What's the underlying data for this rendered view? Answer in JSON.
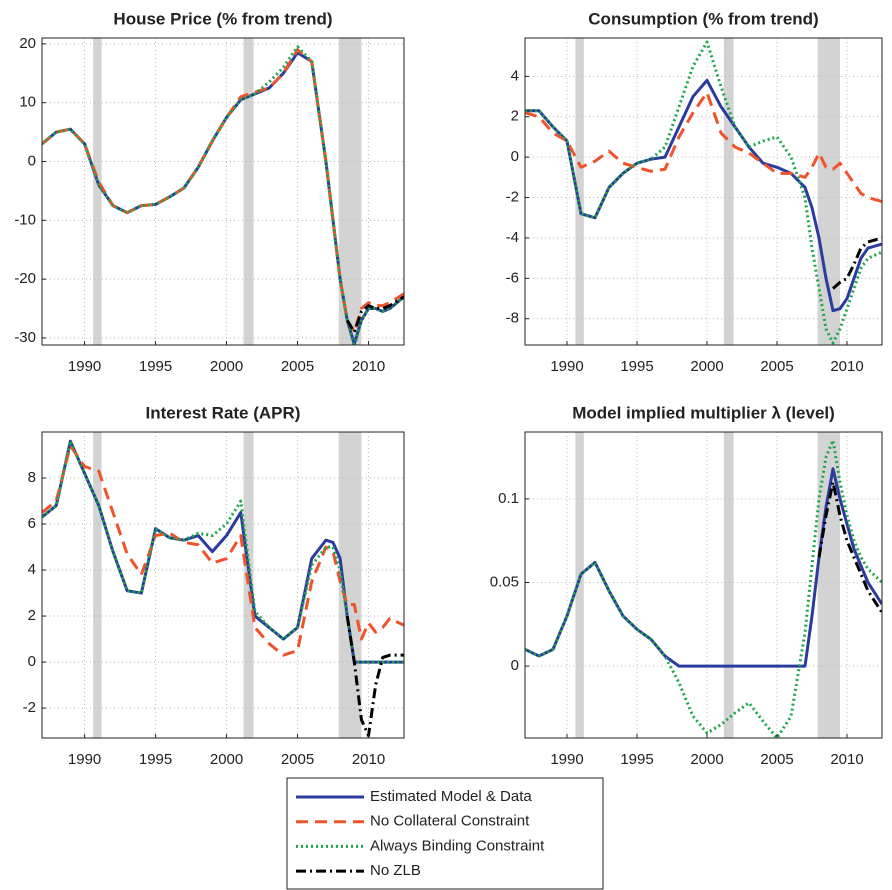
{
  "chart_data": [
    {
      "type": "line",
      "title": "House Price (% from trend)",
      "x": [
        1987,
        1988,
        1989,
        1990,
        1991,
        1992,
        1993,
        1994,
        1995,
        1996,
        1997,
        1998,
        1999,
        2000,
        2001,
        2002,
        2003,
        2004,
        2005,
        2006,
        2007,
        2007.5,
        2008,
        2008.5,
        2009,
        2009.5,
        2010,
        2010.5,
        2011,
        2011.5,
        2012.5
      ],
      "series": [
        {
          "name": "Estimated Model & Data",
          "color": "#2b3a9e",
          "linestyle": "solid",
          "values": [
            3,
            5,
            5.5,
            3,
            -4,
            -7.5,
            -8.7,
            -7.5,
            -7.3,
            -6,
            -4.5,
            -1,
            3.5,
            7.5,
            10.5,
            11.5,
            12.5,
            15,
            18.5,
            17,
            0,
            -10,
            -20,
            -27,
            -31,
            -27,
            -25,
            -25,
            -25.5,
            -25,
            -23
          ]
        },
        {
          "name": "No Collateral Constraint",
          "color": "#f0522a",
          "linestyle": "dashed",
          "values": [
            3,
            5,
            5.5,
            3,
            -3.5,
            -7.5,
            -8.7,
            -7.5,
            -7.3,
            -6,
            -4.5,
            -1,
            3.5,
            7.5,
            11,
            11.8,
            12.5,
            15,
            19,
            17,
            0,
            -10,
            -20,
            -27,
            -29,
            -25,
            -24,
            -24.5,
            -24.5,
            -24,
            -22.5
          ]
        },
        {
          "name": "Always Binding Constraint",
          "color": "#1ca64a",
          "linestyle": "dotted",
          "values": [
            3,
            5,
            5.5,
            3,
            -4,
            -7.5,
            -8.7,
            -7.5,
            -7.3,
            -6,
            -4.5,
            -1,
            3.5,
            7.5,
            10.5,
            11.5,
            13.5,
            16,
            19.5,
            17,
            0,
            -10,
            -20,
            -27,
            -31.5,
            -27,
            -25,
            -25,
            -25.5,
            -25,
            -23
          ]
        },
        {
          "name": "No ZLB",
          "color": "#000000",
          "linestyle": "dashdot",
          "values": [
            null,
            null,
            null,
            null,
            null,
            null,
            null,
            null,
            null,
            null,
            null,
            null,
            null,
            null,
            null,
            null,
            null,
            null,
            null,
            null,
            null,
            null,
            null,
            -27,
            -29,
            -25.5,
            -24.5,
            -25,
            -25,
            -24.5,
            -23
          ]
        }
      ],
      "shaded_x": [
        [
          1990.6,
          1991.2
        ],
        [
          2001.2,
          2001.9
        ],
        [
          2007.9,
          2009.5
        ]
      ],
      "xlim": [
        1987,
        2012.5
      ],
      "xticks": [
        1990,
        1995,
        2000,
        2005,
        2010
      ],
      "ylim": [
        -31.2,
        21
      ],
      "yticks": [
        -30,
        -20,
        -10,
        0,
        10,
        20
      ],
      "grid": true
    },
    {
      "type": "line",
      "title": "Consumption (% from trend)",
      "x": [
        1987,
        1988,
        1989,
        1990,
        1991,
        1992,
        1993,
        1994,
        1995,
        1996,
        1997,
        1998,
        1999,
        2000,
        2001,
        2002,
        2003,
        2004,
        2005,
        2006,
        2007,
        2007.5,
        2008,
        2008.5,
        2009,
        2009.5,
        2010,
        2010.5,
        2011,
        2011.5,
        2012.5
      ],
      "series": [
        {
          "name": "Estimated Model & Data",
          "color": "#2b3a9e",
          "linestyle": "solid",
          "values": [
            2.3,
            2.3,
            1.5,
            0.8,
            -2.8,
            -3,
            -1.5,
            -0.8,
            -0.3,
            -0.1,
            0,
            1.5,
            3,
            3.8,
            2.5,
            1.5,
            0.5,
            -0.3,
            -0.5,
            -0.8,
            -1.5,
            -2.5,
            -4,
            -6,
            -7.6,
            -7.5,
            -7,
            -6,
            -5,
            -4.5,
            -4.3
          ]
        },
        {
          "name": "No Collateral Constraint",
          "color": "#f0522a",
          "linestyle": "dashed",
          "values": [
            2.2,
            2,
            1.2,
            0.8,
            -0.5,
            -0.2,
            0.3,
            -0.3,
            -0.5,
            -0.7,
            -0.6,
            1,
            2.2,
            3.2,
            1.2,
            0.5,
            0.2,
            -0.3,
            -0.8,
            -0.8,
            -1,
            -0.5,
            0.2,
            -0.5,
            -0.6,
            -0.3,
            -0.8,
            -1.3,
            -1.8,
            -2,
            -2.2
          ]
        },
        {
          "name": "Always Binding Constraint",
          "color": "#1ca64a",
          "linestyle": "dotted",
          "values": [
            2.3,
            2.3,
            1.5,
            0.8,
            -2.8,
            -3,
            -1.5,
            -0.8,
            -0.3,
            -0.1,
            0.5,
            2.5,
            4.5,
            5.7,
            3.5,
            1.5,
            0.5,
            0.8,
            1,
            0,
            -2,
            -4.5,
            -6.5,
            -8.5,
            -9.2,
            -8.5,
            -7.5,
            -6.5,
            -5.5,
            -5,
            -4.7
          ]
        },
        {
          "name": "No ZLB",
          "color": "#000000",
          "linestyle": "dashdot",
          "values": [
            null,
            null,
            null,
            null,
            null,
            null,
            null,
            null,
            null,
            null,
            null,
            null,
            null,
            null,
            null,
            null,
            null,
            null,
            null,
            null,
            null,
            null,
            null,
            null,
            -6.5,
            -6.2,
            -6,
            -5.3,
            -4.5,
            -4.2,
            -4
          ]
        }
      ],
      "shaded_x": [
        [
          1990.6,
          1991.2
        ],
        [
          2001.2,
          2001.9
        ],
        [
          2007.9,
          2009.5
        ]
      ],
      "xlim": [
        1987,
        2012.5
      ],
      "xticks": [
        1990,
        1995,
        2000,
        2005,
        2010
      ],
      "ylim": [
        -9.3,
        5.9
      ],
      "yticks": [
        -8,
        -6,
        -4,
        -2,
        0,
        2,
        4
      ],
      "grid": true
    },
    {
      "type": "line",
      "title": "Interest Rate (APR)",
      "x": [
        1987,
        1988,
        1989,
        1990,
        1991,
        1992,
        1993,
        1994,
        1995,
        1996,
        1997,
        1998,
        1999,
        2000,
        2001,
        2002,
        2003,
        2004,
        2005,
        2006,
        2007,
        2007.5,
        2008,
        2008.5,
        2009,
        2009.5,
        2010,
        2010.5,
        2011,
        2011.5,
        2012.5
      ],
      "series": [
        {
          "name": "Estimated Model & Data",
          "color": "#2b3a9e",
          "linestyle": "solid",
          "values": [
            6.3,
            6.8,
            9.6,
            8.2,
            6.8,
            4.8,
            3.1,
            3,
            5.8,
            5.4,
            5.3,
            5.5,
            4.8,
            5.5,
            6.5,
            2,
            1.5,
            1,
            1.5,
            4.5,
            5.3,
            5.2,
            4.5,
            2,
            0,
            0,
            0,
            0,
            0,
            0,
            0
          ]
        },
        {
          "name": "No Collateral Constraint",
          "color": "#f0522a",
          "linestyle": "dashed",
          "values": [
            6.5,
            7,
            9.4,
            8.5,
            8.3,
            6.5,
            4.7,
            3.8,
            5.5,
            5.6,
            5.2,
            5.1,
            4.3,
            4.5,
            5.5,
            1.5,
            0.8,
            0.3,
            0.5,
            3.5,
            5,
            4.8,
            3.5,
            2.5,
            2.5,
            1,
            1.7,
            1.3,
            1.5,
            1.9,
            1.6
          ]
        },
        {
          "name": "Always Binding Constraint",
          "color": "#1ca64a",
          "linestyle": "dotted",
          "values": [
            6.3,
            6.8,
            9.6,
            8.2,
            6.8,
            4.8,
            3.1,
            3,
            5.8,
            5.4,
            5.3,
            5.6,
            5.5,
            6,
            7,
            2.2,
            1.5,
            1,
            1.5,
            4.2,
            5,
            5,
            4,
            2,
            0,
            0,
            0,
            0,
            0,
            0,
            0
          ]
        },
        {
          "name": "No ZLB",
          "color": "#000000",
          "linestyle": "dashdot",
          "values": [
            null,
            null,
            null,
            null,
            null,
            null,
            null,
            null,
            null,
            null,
            null,
            null,
            null,
            null,
            null,
            null,
            null,
            null,
            null,
            null,
            null,
            null,
            null,
            2,
            0,
            -2.5,
            -3.2,
            -1,
            0.2,
            0.3,
            0.3
          ]
        }
      ],
      "shaded_x": [
        [
          1990.6,
          1991.2
        ],
        [
          2001.2,
          2001.9
        ],
        [
          2007.9,
          2009.5
        ]
      ],
      "xlim": [
        1987,
        2012.5
      ],
      "xticks": [
        1990,
        1995,
        2000,
        2005,
        2010
      ],
      "ylim": [
        -3.3,
        10
      ],
      "yticks": [
        -2,
        0,
        2,
        4,
        6,
        8
      ],
      "grid": true
    },
    {
      "type": "line",
      "title": "Model implied multiplier λ (level)",
      "x": [
        1987,
        1988,
        1989,
        1990,
        1991,
        1992,
        1993,
        1994,
        1995,
        1996,
        1997,
        1998,
        1999,
        2000,
        2001,
        2002,
        2003,
        2004,
        2005,
        2006,
        2007,
        2007.5,
        2008,
        2008.5,
        2009,
        2009.5,
        2010,
        2010.5,
        2011,
        2011.5,
        2012.5
      ],
      "series": [
        {
          "name": "Estimated Model & Data",
          "color": "#2b3a9e",
          "linestyle": "solid",
          "values": [
            0.01,
            0.006,
            0.01,
            0.03,
            0.055,
            0.062,
            0.045,
            0.03,
            0.022,
            0.016,
            0.006,
            0,
            0,
            0,
            0,
            0,
            0,
            0,
            0,
            0,
            0,
            0.03,
            0.065,
            0.095,
            0.118,
            0.1,
            0.085,
            0.07,
            0.06,
            0.05,
            0.037
          ]
        },
        {
          "name": "Always Binding Constraint",
          "color": "#1ca64a",
          "linestyle": "dotted",
          "values": [
            0.01,
            0.006,
            0.01,
            0.03,
            0.055,
            0.062,
            0.045,
            0.03,
            0.022,
            0.016,
            0.006,
            -0.01,
            -0.03,
            -0.04,
            -0.035,
            -0.028,
            -0.022,
            -0.033,
            -0.043,
            -0.03,
            0.02,
            0.06,
            0.1,
            0.125,
            0.135,
            0.11,
            0.09,
            0.075,
            0.065,
            0.058,
            0.05
          ]
        },
        {
          "name": "No ZLB",
          "color": "#000000",
          "linestyle": "dashdot",
          "values": [
            null,
            null,
            null,
            null,
            null,
            null,
            null,
            null,
            null,
            null,
            null,
            null,
            null,
            null,
            null,
            null,
            null,
            null,
            null,
            null,
            null,
            null,
            0.065,
            0.09,
            0.11,
            0.09,
            0.075,
            0.065,
            0.055,
            0.045,
            0.032
          ]
        }
      ],
      "shaded_x": [
        [
          1990.6,
          1991.2
        ],
        [
          2001.2,
          2001.9
        ],
        [
          2007.9,
          2009.5
        ]
      ],
      "xlim": [
        1987,
        2012.5
      ],
      "xticks": [
        1990,
        1995,
        2000,
        2005,
        2010
      ],
      "ylim": [
        -0.043,
        0.14
      ],
      "yticks": [
        0,
        0.05,
        0.1
      ],
      "grid": true
    }
  ]
}
